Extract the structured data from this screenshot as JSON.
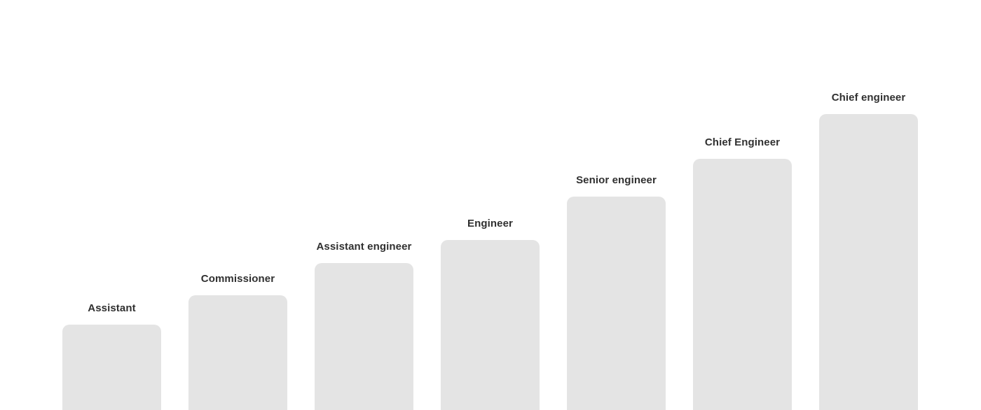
{
  "page": {
    "background": "#ffffff"
  },
  "chart_data": {
    "type": "bar",
    "title": "",
    "xlabel": "",
    "ylabel": "",
    "legend_position": "none",
    "axes_visible": false,
    "grid": false,
    "categories": [
      "Assistant",
      "Commissioner",
      "Assistant engineer",
      "Engineer",
      "Senior engineer",
      "Chief Engineer",
      "Chief engineer"
    ],
    "values": [
      122,
      164,
      210,
      243,
      305,
      359,
      423
    ],
    "values_note": "visible bar heights in px; ascending career-ladder steps, bars clipped at bottom edge of image",
    "bar_fill": "#e4e4e4",
    "label_color": "#303030"
  }
}
